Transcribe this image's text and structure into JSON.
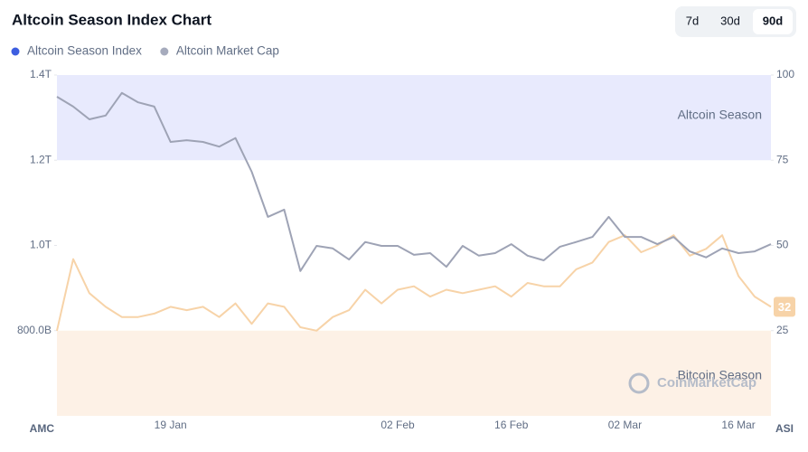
{
  "chart_data": {
    "type": "line",
    "title": "Altcoin Season Index Chart",
    "range_options": [
      "7d",
      "30d",
      "90d"
    ],
    "active_range": "90d",
    "y_axis_label": "AMC",
    "y2_axis_label": "ASI",
    "watermark": "CoinMarketCap",
    "bands": [
      {
        "label": "Altcoin Season",
        "from": 75,
        "to": 100,
        "color": "#e8eafd",
        "axis": "y2"
      },
      {
        "label": "Bitcoin Season",
        "from": 0,
        "to": 25,
        "color": "#fdf1e6",
        "axis": "y2"
      }
    ],
    "categories": [
      null,
      null,
      null,
      null,
      null,
      null,
      null,
      "19 Jan",
      null,
      null,
      null,
      null,
      null,
      null,
      null,
      null,
      null,
      null,
      null,
      null,
      null,
      "02 Feb",
      null,
      null,
      null,
      null,
      null,
      null,
      "16 Feb",
      null,
      null,
      null,
      null,
      null,
      null,
      "02 Mar",
      null,
      null,
      null,
      null,
      null,
      null,
      "16 Mar",
      null,
      null
    ],
    "series": [
      {
        "name": "Altcoin Season Index",
        "color": "#3d5ee0",
        "line_color": "#f7d3a8",
        "axis": "y2",
        "values": [
          25,
          46,
          36,
          32,
          29,
          29,
          30,
          32,
          31,
          32,
          29,
          33,
          27,
          33,
          32,
          26,
          25,
          29,
          31,
          37,
          33,
          37,
          38,
          35,
          37,
          36,
          37,
          38,
          35,
          39,
          38,
          38,
          43,
          45,
          51,
          53,
          48,
          50,
          53,
          47,
          49,
          53,
          41,
          35,
          32
        ]
      },
      {
        "name": "Altcoin Market Cap",
        "color": "#a6abbd",
        "line_color": "#9ea3b5",
        "axis": "y",
        "values": [
          1349000000000,
          1326000000000,
          1296000000000,
          1305000000000,
          1358000000000,
          1336000000000,
          1326000000000,
          1243000000000,
          1247000000000,
          1243000000000,
          1232000000000,
          1252000000000,
          1173000000000,
          1067000000000,
          1084000000000,
          940000000000,
          999000000000,
          993000000000,
          967000000000,
          1008000000000,
          999000000000,
          999000000000,
          978000000000,
          982000000000,
          950000000000,
          999000000000,
          976000000000,
          982000000000,
          1003000000000,
          976000000000,
          965000000000,
          997000000000,
          1008000000000,
          1020000000000,
          1067000000000,
          1020000000000,
          1020000000000,
          1003000000000,
          1020000000000,
          986000000000,
          972000000000,
          993000000000,
          982000000000,
          986000000000,
          1003000000000
        ]
      }
    ],
    "ylim": [
      600000000000,
      1400000000000
    ],
    "yticks": [
      {
        "value": 800000000000,
        "label": "800.0B"
      },
      {
        "value": 1000000000000,
        "label": "1.0T"
      },
      {
        "value": 1200000000000,
        "label": "1.2T"
      },
      {
        "value": 1400000000000,
        "label": "1.4T"
      }
    ],
    "y2lim": [
      0,
      100
    ],
    "y2ticks": [
      25,
      50,
      75,
      100
    ],
    "grid": false,
    "legend": "top-left"
  }
}
